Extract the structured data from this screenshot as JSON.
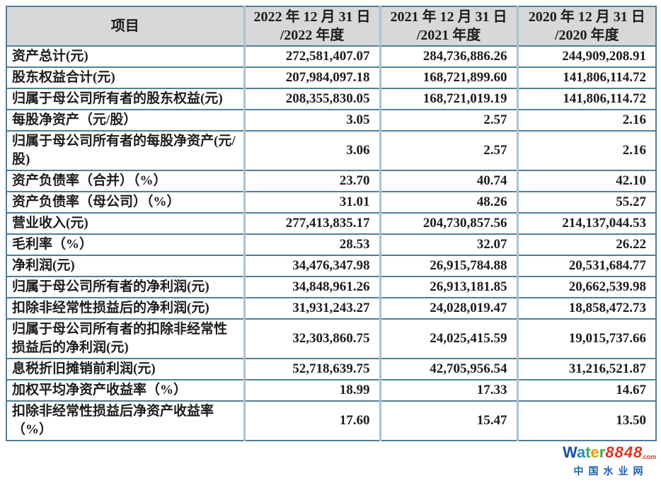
{
  "table": {
    "header": {
      "item_label": "项目",
      "periods": [
        {
          "line1": "2022 年 12 月 31 日",
          "line2": "/2022 年度"
        },
        {
          "line1": "2021 年 12 月 31 日",
          "line2": "/2021 年度"
        },
        {
          "line1": "2020 年 12 月 31 日",
          "line2": "/2020 年度"
        }
      ]
    },
    "rows": [
      {
        "label": "资产总计(元)",
        "values": [
          "272,581,407.07",
          "284,736,886.26",
          "244,909,208.91"
        ]
      },
      {
        "label": "股东权益合计(元)",
        "values": [
          "207,984,097.18",
          "168,721,899.60",
          "141,806,114.72"
        ]
      },
      {
        "label": "归属于母公司所有者的股东权益(元)",
        "values": [
          "208,355,830.05",
          "168,721,019.19",
          "141,806,114.72"
        ]
      },
      {
        "label": "每股净资产（元/股）",
        "values": [
          "3.05",
          "2.57",
          "2.16"
        ]
      },
      {
        "label": "归属于母公司所有者的每股净资产(元/股)",
        "values": [
          "3.06",
          "2.57",
          "2.16"
        ]
      },
      {
        "label": "资产负债率（合并）（%）",
        "values": [
          "23.70",
          "40.74",
          "42.10"
        ]
      },
      {
        "label": "资产负债率（母公司）（%）",
        "values": [
          "31.01",
          "48.26",
          "55.27"
        ]
      },
      {
        "label": "营业收入(元)",
        "values": [
          "277,413,835.17",
          "204,730,857.56",
          "214,137,044.53"
        ]
      },
      {
        "label": "毛利率（%）",
        "values": [
          "28.53",
          "32.07",
          "26.22"
        ]
      },
      {
        "label": "净利润(元)",
        "values": [
          "34,476,347.98",
          "26,915,784.88",
          "20,531,684.77"
        ]
      },
      {
        "label": "归属于母公司所有者的净利润(元)",
        "values": [
          "34,848,961.26",
          "26,913,181.85",
          "20,662,539.98"
        ]
      },
      {
        "label": "扣除非经常性损益后的净利润(元)",
        "values": [
          "31,931,243.27",
          "24,028,019.47",
          "18,858,472.73"
        ]
      },
      {
        "label": "归属于母公司所有者的扣除非经常性损益后的净利润(元)",
        "values": [
          "32,303,860.75",
          "24,025,415.59",
          "19,015,737.66"
        ]
      },
      {
        "label": "息税折旧摊销前利润(元)",
        "values": [
          "52,718,639.75",
          "42,705,956.54",
          "31,216,521.87"
        ]
      },
      {
        "label": "加权平均净资产收益率（%）",
        "values": [
          "18.99",
          "17.33",
          "14.67"
        ]
      },
      {
        "label": "扣除非经常性损益后净资产收益率（%）",
        "values": [
          "17.60",
          "15.47",
          "13.50"
        ]
      }
    ]
  },
  "watermark": {
    "letters": [
      {
        "ch": "W",
        "color": "#1d4fa1"
      },
      {
        "ch": "a",
        "color": "#2e86c9"
      },
      {
        "ch": "t",
        "color": "#3fae49"
      },
      {
        "ch": "e",
        "color": "#f29a0d"
      },
      {
        "ch": "r",
        "color": "#3fae49"
      }
    ],
    "number": "8848",
    "number_color": "#dd3526",
    "suffix": ".com",
    "suffix_color": "#dd3526",
    "caption": "中国水业网",
    "caption_color": "#1d5fb8"
  },
  "colors": {
    "header_background": "#d8d8d8",
    "border_horizontal": "#517e97",
    "border_vertical": "#a6c4d3",
    "text": "#1c1c1c"
  }
}
